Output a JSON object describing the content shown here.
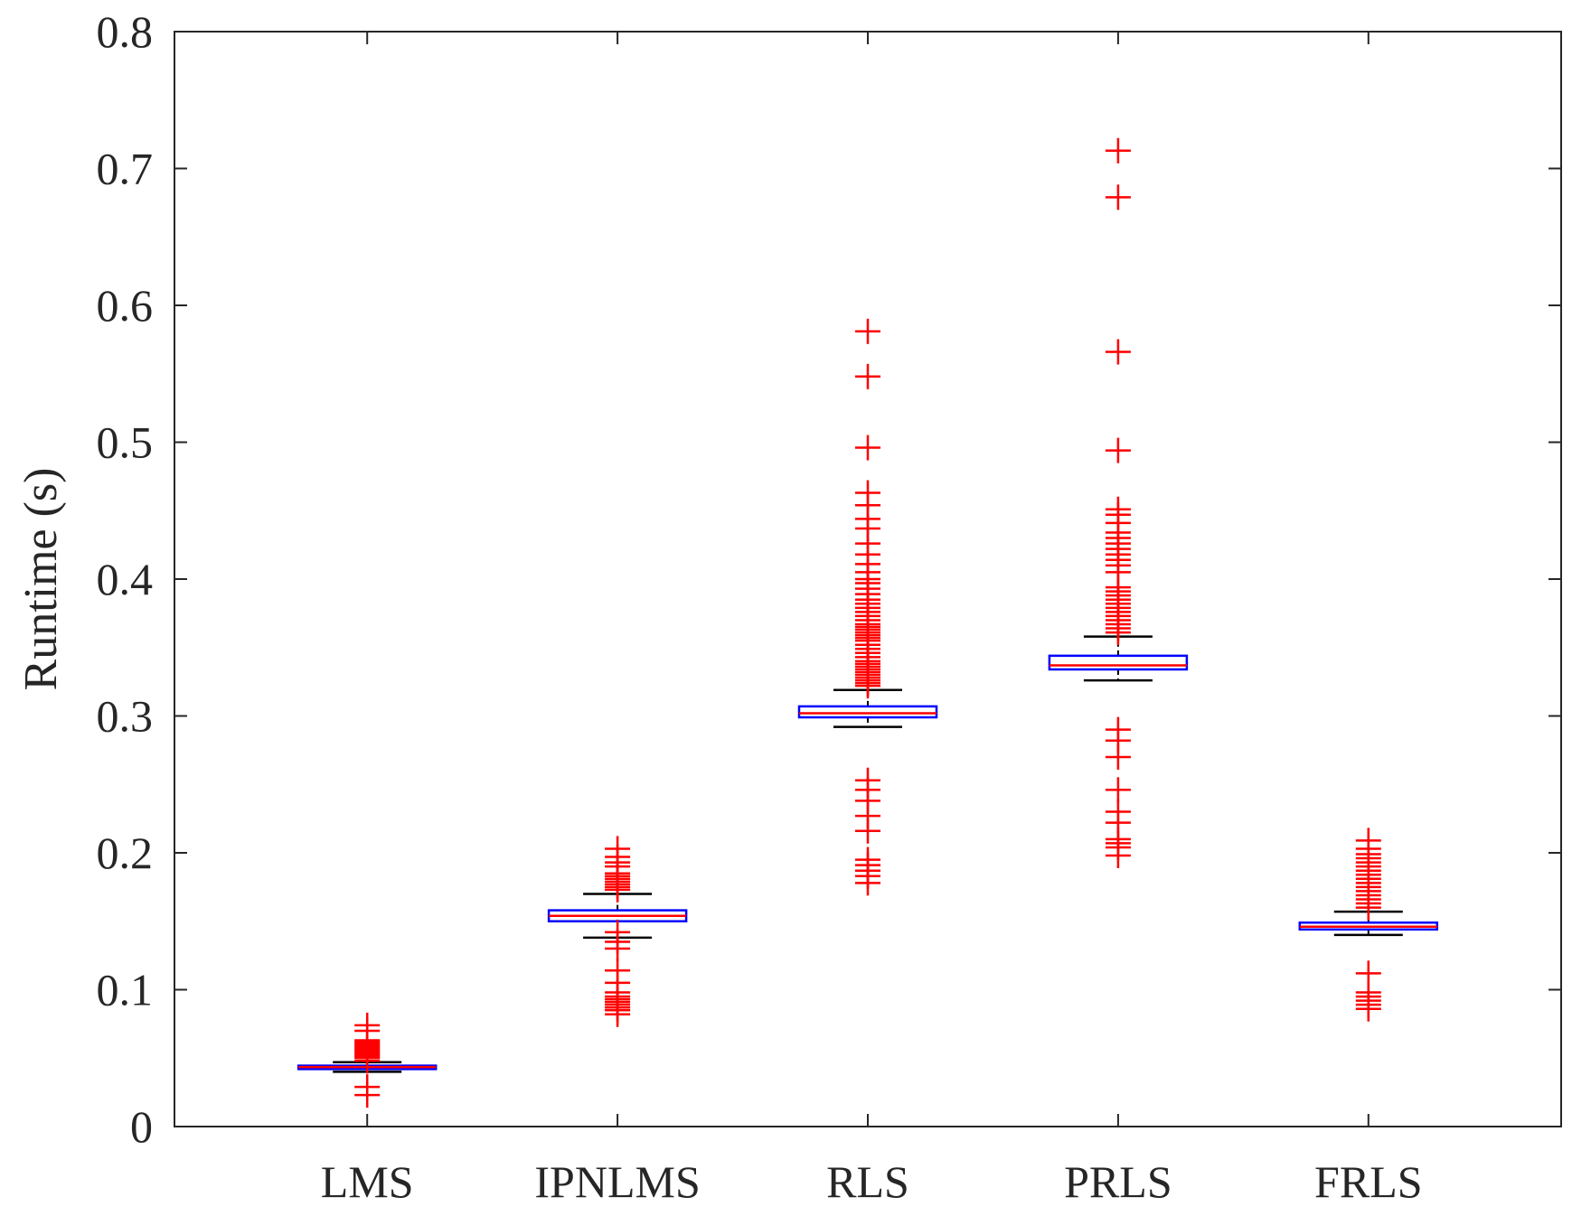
{
  "chart_data": {
    "type": "boxplot",
    "title": "",
    "xlabel": "",
    "ylabel": "Runtime (s)",
    "ylim": [
      0,
      0.8
    ],
    "yticks": [
      0,
      0.1,
      0.2,
      0.3,
      0.4,
      0.5,
      0.6,
      0.7,
      0.8
    ],
    "ytick_labels": [
      "0",
      "0.1",
      "0.2",
      "0.3",
      "0.4",
      "0.5",
      "0.6",
      "0.7",
      "0.8"
    ],
    "categories": [
      "LMS",
      "IPNLMS",
      "RLS",
      "PRLS",
      "FRLS"
    ],
    "colors": {
      "box": "#0000ff",
      "median": "#ff0000",
      "whisker": "#000000",
      "outlier": "#ff0000",
      "axis": "#262626"
    },
    "boxes": [
      {
        "name": "LMS",
        "whisker_low": 0.04,
        "q1": 0.042,
        "median": 0.0435,
        "q3": 0.0445,
        "whisker_high": 0.047,
        "outliers": [
          0.023,
          0.029,
          0.048,
          0.05,
          0.051,
          0.052,
          0.053,
          0.054,
          0.055,
          0.056,
          0.057,
          0.058,
          0.059,
          0.06,
          0.061,
          0.062,
          0.063,
          0.07,
          0.074
        ]
      },
      {
        "name": "IPNLMS",
        "whisker_low": 0.138,
        "q1": 0.15,
        "median": 0.154,
        "q3": 0.158,
        "whisker_high": 0.17,
        "outliers": [
          0.082,
          0.085,
          0.087,
          0.089,
          0.091,
          0.093,
          0.095,
          0.098,
          0.105,
          0.114,
          0.13,
          0.135,
          0.142,
          0.173,
          0.175,
          0.177,
          0.179,
          0.181,
          0.183,
          0.185,
          0.19,
          0.193,
          0.197,
          0.203
        ]
      },
      {
        "name": "RLS",
        "whisker_low": 0.292,
        "q1": 0.299,
        "median": 0.302,
        "q3": 0.307,
        "whisker_high": 0.319,
        "outliers": [
          0.178,
          0.183,
          0.187,
          0.191,
          0.195,
          0.216,
          0.227,
          0.238,
          0.246,
          0.253,
          0.322,
          0.324,
          0.326,
          0.328,
          0.33,
          0.332,
          0.334,
          0.336,
          0.338,
          0.34,
          0.343,
          0.346,
          0.349,
          0.352,
          0.355,
          0.357,
          0.359,
          0.361,
          0.363,
          0.365,
          0.367,
          0.37,
          0.373,
          0.376,
          0.379,
          0.382,
          0.385,
          0.389,
          0.393,
          0.397,
          0.4,
          0.405,
          0.411,
          0.418,
          0.426,
          0.437,
          0.444,
          0.454,
          0.463,
          0.496,
          0.548,
          0.581
        ]
      },
      {
        "name": "PRLS",
        "whisker_low": 0.326,
        "q1": 0.334,
        "median": 0.337,
        "q3": 0.344,
        "whisker_high": 0.358,
        "outliers": [
          0.198,
          0.204,
          0.207,
          0.21,
          0.222,
          0.23,
          0.246,
          0.27,
          0.282,
          0.29,
          0.361,
          0.364,
          0.367,
          0.37,
          0.373,
          0.376,
          0.379,
          0.382,
          0.385,
          0.388,
          0.391,
          0.394,
          0.405,
          0.41,
          0.414,
          0.418,
          0.422,
          0.426,
          0.43,
          0.434,
          0.441,
          0.447,
          0.451,
          0.494,
          0.566,
          0.679,
          0.713
        ]
      },
      {
        "name": "FRLS",
        "whisker_low": 0.14,
        "q1": 0.144,
        "median": 0.146,
        "q3": 0.149,
        "whisker_high": 0.157,
        "outliers": [
          0.086,
          0.089,
          0.092,
          0.095,
          0.098,
          0.112,
          0.16,
          0.163,
          0.166,
          0.169,
          0.172,
          0.175,
          0.178,
          0.181,
          0.184,
          0.187,
          0.19,
          0.193,
          0.196,
          0.199,
          0.203,
          0.209
        ]
      }
    ]
  }
}
